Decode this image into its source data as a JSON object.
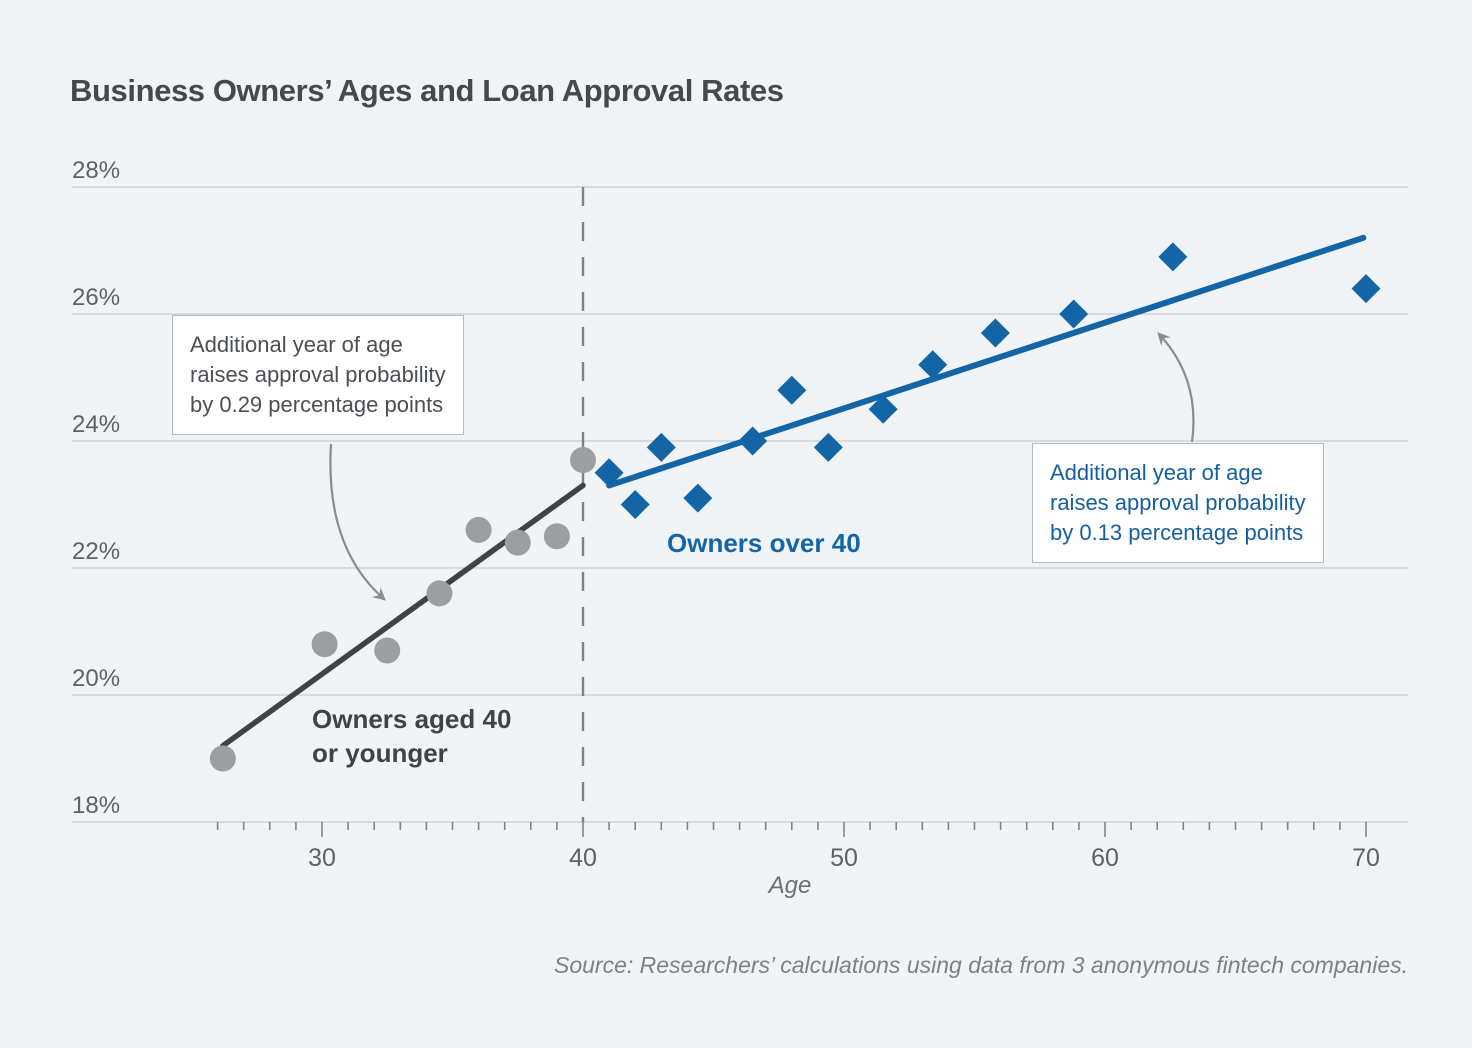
{
  "page": {
    "title": "Business Owners’ Ages and Loan Approval Rates",
    "source_note": "Source: Researchers’ calculations using data from 3 anonymous fintech companies."
  },
  "labels": {
    "young_group": "Owners aged 40\nor younger",
    "old_group": "Owners over 40",
    "age_axis": "Age"
  },
  "chart_data": {
    "type": "scatter",
    "title": "Business Owners’ Ages and Loan Approval Rates",
    "xlabel": "Age",
    "ylabel": "",
    "x_ticks_major": [
      30,
      40,
      50,
      60,
      70
    ],
    "x_minor_tick_range": [
      26,
      70
    ],
    "y_ticks": [
      18,
      20,
      22,
      24,
      26,
      28
    ],
    "y_tick_suffix": "%",
    "xlim": [
      20.4,
      71.6
    ],
    "ylim": [
      18,
      28
    ],
    "grid": "horizontal",
    "threshold_age": 40,
    "series": [
      {
        "name": "Owners aged 40 or younger",
        "marker": "circle",
        "color": "#9b9fa2",
        "line_color": "#3e4348",
        "slope_label": "0.29 percentage points per year",
        "points": [
          [
            26.2,
            19.0
          ],
          [
            30.1,
            20.8
          ],
          [
            32.5,
            20.7
          ],
          [
            34.5,
            21.6
          ],
          [
            36.0,
            22.6
          ],
          [
            37.5,
            22.4
          ],
          [
            39.0,
            22.5
          ],
          [
            40.0,
            23.7
          ]
        ],
        "fit_line": {
          "x1": 26.2,
          "y1": 19.2,
          "x2": 40.0,
          "y2": 23.3
        }
      },
      {
        "name": "Owners over 40",
        "marker": "diamond",
        "color": "#1465a6",
        "line_color": "#1465a6",
        "slope_label": "0.13 percentage points per year",
        "points": [
          [
            41.0,
            23.5
          ],
          [
            42.0,
            23.0
          ],
          [
            43.0,
            23.9
          ],
          [
            44.4,
            23.1
          ],
          [
            46.5,
            24.0
          ],
          [
            48.0,
            24.8
          ],
          [
            49.4,
            23.9
          ],
          [
            51.5,
            24.5
          ],
          [
            53.4,
            25.2
          ],
          [
            55.8,
            25.7
          ],
          [
            58.8,
            26.0
          ],
          [
            62.6,
            26.9
          ],
          [
            70.0,
            26.4
          ]
        ],
        "fit_line": {
          "x1": 41.0,
          "y1": 23.3,
          "x2": 69.9,
          "y2": 27.2
        }
      }
    ],
    "annotations": [
      {
        "text": "Additional year of age\nraises approval probability\nby 0.29 percentage points",
        "color": "#4a4f54"
      },
      {
        "text": "Additional year of age\nraises approval probability\nby 0.13 percentage points",
        "color": "#155f9f"
      }
    ],
    "style": {
      "background": "#f0f4f7",
      "grid_color": "#c7ccd2",
      "tick_color": "#7e858b",
      "tick_label_color": "#5d6267",
      "dashed_line_color": "#7b8288",
      "arrow_color": "#868d95",
      "accent_blue": "#1465a6",
      "dark_gray": "#3e4348"
    }
  }
}
